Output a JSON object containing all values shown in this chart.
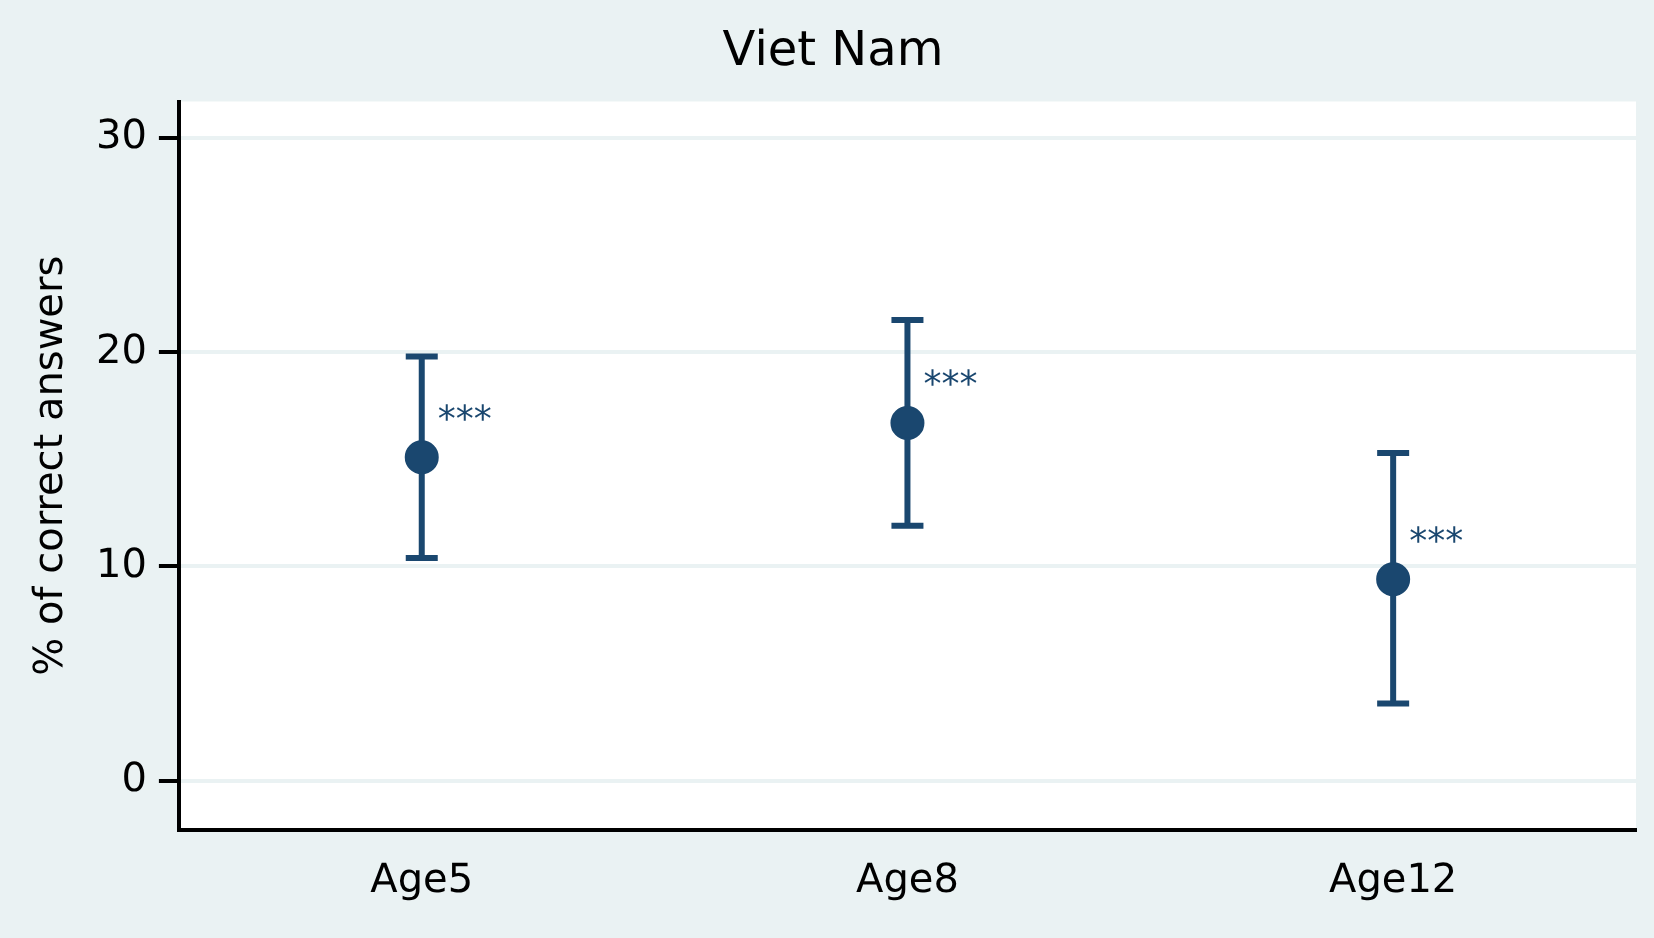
{
  "chart_data": {
    "type": "scatter",
    "title": "Viet Nam",
    "ylabel": "% of correct answers",
    "categories": [
      "Age5",
      "Age8",
      "Age12"
    ],
    "series": [
      {
        "color": "#1a476f",
        "values": [
          15.1,
          16.7,
          9.4
        ],
        "errors": [
          [
            10.4,
            19.8
          ],
          [
            11.9,
            21.5
          ],
          [
            3.6,
            15.3
          ]
        ]
      }
    ],
    "ylim": [
      -2.3,
      31.7
    ],
    "yticks": [
      0,
      10,
      20,
      30
    ],
    "grid": "y",
    "marker": "circle",
    "legend": false,
    "annotations": [
      {
        "text": "***",
        "x": "Age5",
        "y": 15.1
      },
      {
        "text": "***",
        "x": "Age8",
        "y": 16.7
      },
      {
        "text": "***",
        "x": "Age12",
        "y": 9.4
      }
    ]
  }
}
